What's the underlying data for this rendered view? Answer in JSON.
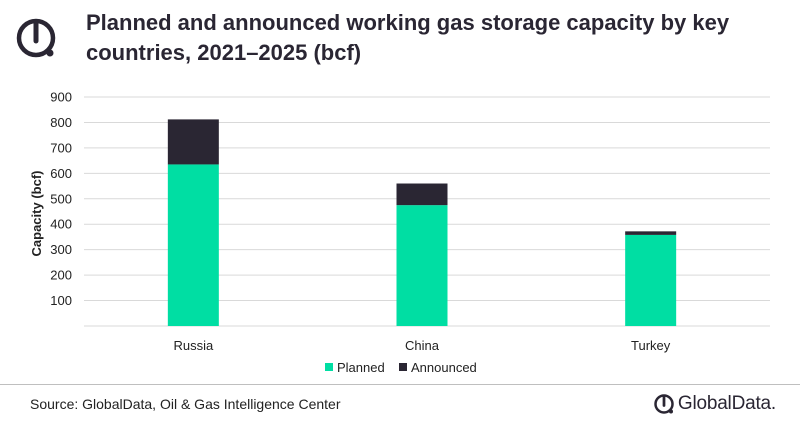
{
  "header": {
    "title": "Planned and announced working gas storage capacity by key countries, 2021–2025 (bcf)"
  },
  "footer": {
    "source": "Source: GlobalData, Oil & Gas Intelligence Center",
    "brand": "GlobalData."
  },
  "icons": {
    "logo": "globaldata-logo-icon"
  },
  "colors": {
    "planned": "#00dea3",
    "announced": "#2a2633",
    "grid": "#d9d9d9",
    "accent": "#00dea3"
  },
  "chart_data": {
    "type": "bar",
    "stacked": true,
    "categories": [
      "Russia",
      "China",
      "Turkey"
    ],
    "series": [
      {
        "name": "Planned",
        "values": [
          635,
          475,
          358
        ]
      },
      {
        "name": "Announced",
        "values": [
          177,
          85,
          14
        ]
      }
    ],
    "ylabel": "Capacity (bcf)",
    "ylim": [
      0,
      900
    ],
    "yticks": [
      100,
      200,
      300,
      400,
      500,
      600,
      700,
      800,
      900
    ],
    "grid": true,
    "legend_position": "bottom"
  }
}
